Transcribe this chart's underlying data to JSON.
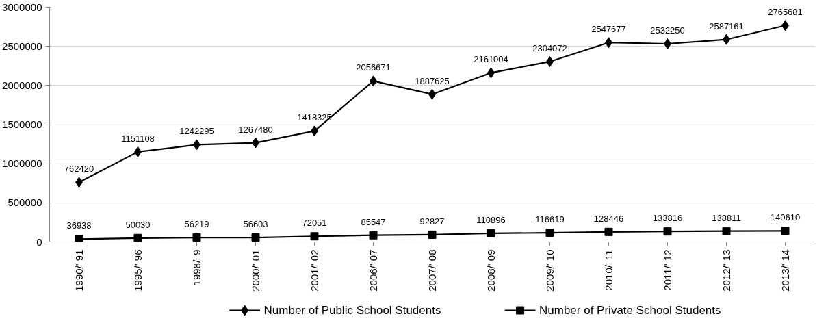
{
  "chart_data": {
    "type": "line",
    "categories": [
      "1990/' 91",
      "1995/' 96",
      "1998/' 9",
      "2000/' 01",
      "2001/' 02",
      "2006/' 07",
      "2007/' 08",
      "2008/' 09",
      "2009/' 10",
      "2010/' 11",
      "2011/' 12",
      "2012/' 13",
      "2013/' 14"
    ],
    "series": [
      {
        "name": "Number of Public School Students",
        "color": "#000000",
        "marker": "diamond",
        "values": [
          762420,
          1151108,
          1242295,
          1267480,
          1418325,
          2056671,
          1887625,
          2161004,
          2304072,
          2547677,
          2532250,
          2587161,
          2765681
        ]
      },
      {
        "name": "Number of Private School Students",
        "color": "#000000",
        "marker": "square",
        "values": [
          36938,
          50030,
          56219,
          56603,
          72051,
          85547,
          92827,
          110896,
          116619,
          128446,
          133816,
          138811,
          140610
        ]
      }
    ],
    "ylim": [
      0,
      3000000
    ],
    "yticks": [
      0,
      500000,
      1000000,
      1500000,
      2000000,
      2500000,
      3000000
    ],
    "grid": "y",
    "legend": "bottom",
    "data_labels": true,
    "line_style": "solid"
  }
}
